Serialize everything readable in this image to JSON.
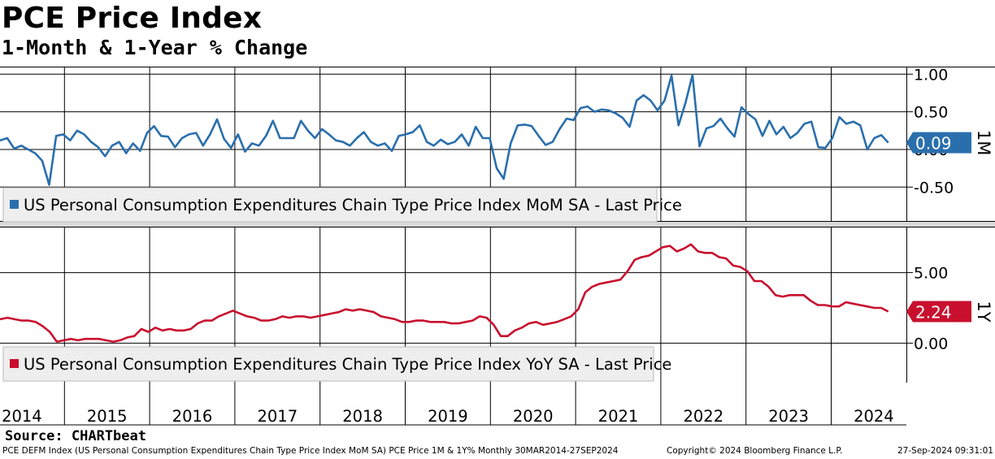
{
  "title": "PCE Price Index",
  "subtitle": "1-Month & 1-Year % Change",
  "source": "Source: CHARTbeat",
  "footer": {
    "description": "PCE DEFM Index (US Personal Consumption Expenditures Chain Type Price Index MoM SA) PCE Price 1M & 1Y%  Monthly 30MAR2014-27SEP2024",
    "copyright": "Copyright© 2024 Bloomberg Finance L.P.",
    "timestamp": "27-Sep-2024 09:31:01"
  },
  "colors": {
    "mom": "#2a6fad",
    "yoy": "#c8102e"
  },
  "chart_data": [
    {
      "type": "line",
      "name": "1M",
      "legend": "US Personal Consumption Expenditures Chain Type Price Index MoM SA - Last Price",
      "last_value_label": "0.09",
      "side_label": "1M",
      "y_ticks": [
        "1.00",
        "0.50",
        "0.00",
        "-0.50"
      ],
      "y_tick_values": [
        1.0,
        0.5,
        0.0,
        -0.5
      ],
      "ylim": [
        -0.95,
        1.1
      ],
      "x_start": 2014.0,
      "x_end": 2024.67,
      "values": [
        0.18,
        0.19,
        0.17,
        0.12,
        0.15,
        0.01,
        0.05,
        0.0,
        -0.05,
        -0.15,
        -0.47,
        0.18,
        0.2,
        0.12,
        0.25,
        0.2,
        0.1,
        0.03,
        -0.09,
        0.05,
        0.1,
        -0.05,
        0.08,
        -0.02,
        0.22,
        0.31,
        0.18,
        0.17,
        0.03,
        0.15,
        0.2,
        0.22,
        0.05,
        0.2,
        0.4,
        0.14,
        0.02,
        0.2,
        -0.03,
        0.08,
        0.05,
        0.18,
        0.38,
        0.15,
        0.15,
        0.15,
        0.38,
        0.25,
        0.15,
        0.27,
        0.2,
        0.12,
        0.1,
        0.05,
        0.15,
        0.23,
        0.1,
        0.05,
        0.08,
        -0.02,
        0.18,
        0.2,
        0.23,
        0.32,
        0.1,
        0.05,
        0.13,
        0.07,
        0.1,
        0.2,
        0.05,
        0.3,
        0.15,
        0.15,
        -0.25,
        -0.39,
        0.08,
        0.32,
        0.33,
        0.31,
        0.18,
        0.06,
        0.1,
        0.27,
        0.41,
        0.39,
        0.55,
        0.57,
        0.5,
        0.53,
        0.52,
        0.48,
        0.42,
        0.3,
        0.65,
        0.72,
        0.65,
        0.52,
        0.65,
        0.98,
        0.32,
        0.62,
        0.99,
        0.04,
        0.28,
        0.31,
        0.41,
        0.28,
        0.17,
        0.56,
        0.47,
        0.4,
        0.18,
        0.38,
        0.2,
        0.3,
        0.15,
        0.22,
        0.34,
        0.37,
        0.03,
        0.02,
        0.15,
        0.43,
        0.34,
        0.37,
        0.32,
        0.0,
        0.15,
        0.19,
        0.09
      ],
      "x_labels": [
        "2014",
        "2015",
        "2016",
        "2017",
        "2018",
        "2019",
        "2020",
        "2021",
        "2022",
        "2023",
        "2024"
      ]
    },
    {
      "type": "line",
      "name": "1Y",
      "legend": "US Personal Consumption Expenditures Chain Type Price Index YoY SA - Last Price",
      "last_value_label": "2.24",
      "side_label": "1Y",
      "y_ticks": [
        "5.00",
        "0.00"
      ],
      "y_tick_values": [
        5.0,
        0.0
      ],
      "ylim": [
        -2.8,
        8.2
      ],
      "x_start": 2014.0,
      "x_end": 2024.67,
      "values": [
        1.6,
        1.8,
        1.8,
        1.7,
        1.8,
        1.7,
        1.6,
        1.6,
        1.5,
        1.2,
        0.8,
        0.1,
        0.2,
        0.3,
        0.2,
        0.3,
        0.3,
        0.3,
        0.2,
        0.1,
        0.2,
        0.4,
        0.5,
        1.0,
        0.8,
        1.1,
        0.9,
        1.0,
        0.9,
        0.9,
        1.0,
        1.4,
        1.6,
        1.6,
        1.9,
        2.1,
        2.3,
        2.1,
        1.9,
        1.8,
        1.6,
        1.6,
        1.7,
        1.9,
        1.8,
        1.9,
        1.9,
        1.8,
        1.9,
        2.0,
        2.1,
        2.2,
        2.4,
        2.3,
        2.4,
        2.3,
        2.2,
        1.9,
        1.8,
        1.7,
        1.5,
        1.5,
        1.6,
        1.6,
        1.5,
        1.5,
        1.5,
        1.4,
        1.4,
        1.5,
        1.6,
        1.9,
        1.8,
        1.3,
        0.5,
        0.5,
        0.9,
        1.1,
        1.4,
        1.5,
        1.3,
        1.4,
        1.5,
        1.7,
        1.9,
        2.4,
        3.6,
        4.0,
        4.2,
        4.3,
        4.4,
        4.5,
        5.1,
        5.9,
        6.1,
        6.2,
        6.5,
        6.8,
        6.9,
        6.5,
        6.7,
        7.0,
        6.5,
        6.4,
        6.4,
        6.1,
        6.0,
        5.5,
        5.4,
        5.1,
        4.4,
        4.4,
        4.0,
        3.4,
        3.3,
        3.4,
        3.4,
        3.4,
        3.0,
        2.7,
        2.7,
        2.6,
        2.6,
        2.9,
        2.8,
        2.7,
        2.6,
        2.5,
        2.5,
        2.24
      ],
      "x_labels": [
        "2014",
        "2015",
        "2016",
        "2017",
        "2018",
        "2019",
        "2020",
        "2021",
        "2022",
        "2023",
        "2024"
      ]
    }
  ]
}
